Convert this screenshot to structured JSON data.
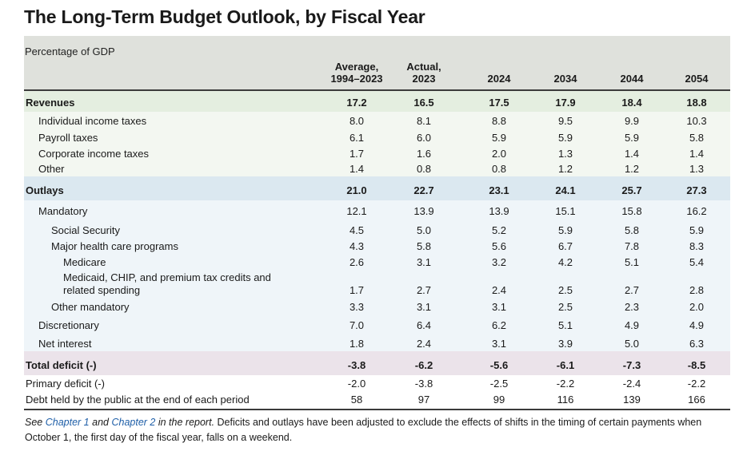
{
  "title": "The Long-Term Budget Outlook, by Fiscal Year",
  "subtitle": "Percentage of GDP",
  "columns": [
    {
      "line1": "Average,",
      "line2": "1994–2023"
    },
    {
      "line1": "Actual,",
      "line2": "2023"
    },
    {
      "line1": "",
      "line2": "2024"
    },
    {
      "line1": "",
      "line2": "2034"
    },
    {
      "line1": "",
      "line2": "2044"
    },
    {
      "line1": "",
      "line2": "2054"
    }
  ],
  "rows": [
    {
      "label": "Revenues",
      "values": [
        "17.2",
        "16.5",
        "17.5",
        "17.9",
        "18.4",
        "18.8"
      ]
    },
    {
      "label": "Individual income taxes",
      "values": [
        "8.0",
        "8.1",
        "8.8",
        "9.5",
        "9.9",
        "10.3"
      ]
    },
    {
      "label": "Payroll taxes",
      "values": [
        "6.1",
        "6.0",
        "5.9",
        "5.9",
        "5.9",
        "5.8"
      ]
    },
    {
      "label": "Corporate income taxes",
      "values": [
        "1.7",
        "1.6",
        "2.0",
        "1.3",
        "1.4",
        "1.4"
      ]
    },
    {
      "label": "Other",
      "values": [
        "1.4",
        "0.8",
        "0.8",
        "1.2",
        "1.2",
        "1.3"
      ]
    },
    {
      "label": "Outlays",
      "values": [
        "21.0",
        "22.7",
        "23.1",
        "24.1",
        "25.7",
        "27.3"
      ]
    },
    {
      "label": "Mandatory",
      "values": [
        "12.1",
        "13.9",
        "13.9",
        "15.1",
        "15.8",
        "16.2"
      ]
    },
    {
      "label": "Social Security",
      "values": [
        "4.5",
        "5.0",
        "5.2",
        "5.9",
        "5.8",
        "5.9"
      ]
    },
    {
      "label": "Major health care programs",
      "values": [
        "4.3",
        "5.8",
        "5.6",
        "6.7",
        "7.8",
        "8.3"
      ]
    },
    {
      "label": "Medicare",
      "values": [
        "2.6",
        "3.1",
        "3.2",
        "4.2",
        "5.1",
        "5.4"
      ]
    },
    {
      "label": "Medicaid, CHIP, and premium tax credits and",
      "label2": "related spending",
      "values": [
        "1.7",
        "2.7",
        "2.4",
        "2.5",
        "2.7",
        "2.8"
      ]
    },
    {
      "label": "Other mandatory",
      "values": [
        "3.3",
        "3.1",
        "3.1",
        "2.5",
        "2.3",
        "2.0"
      ]
    },
    {
      "label": "Discretionary",
      "values": [
        "7.0",
        "6.4",
        "6.2",
        "5.1",
        "4.9",
        "4.9"
      ]
    },
    {
      "label": "Net interest",
      "values": [
        "1.8",
        "2.4",
        "3.1",
        "3.9",
        "5.0",
        "6.3"
      ]
    },
    {
      "label": "Total deficit (-)",
      "values": [
        "-3.8",
        "-6.2",
        "-5.6",
        "-6.1",
        "-7.3",
        "-8.5"
      ]
    },
    {
      "label": "Primary deficit (-)",
      "values": [
        "-2.0",
        "-3.8",
        "-2.5",
        "-2.2",
        "-2.4",
        "-2.2"
      ]
    },
    {
      "label": "Debt held by the public at the end of each period",
      "values": [
        "58",
        "97",
        "99",
        "116",
        "139",
        "166"
      ]
    }
  ],
  "footnote": {
    "see": "See",
    "ch1": "Chapter 1",
    "and": "and",
    "ch2": "Chapter 2",
    "in_report": "in the report.",
    "text": "Deficits and outlays have been adjusted to exclude the effects of shifts in the timing of certain payments when October 1, the first day of the fiscal year, falls on a weekend."
  },
  "colors": {
    "header_bg": "#dfe1dc",
    "revenues_band": "#e4eee0",
    "revenues_detail_band": "#f3f7f1",
    "outlays_band": "#dbe8f0",
    "outlays_detail_band": "#eff5f9",
    "deficit_band": "#ebe3ea",
    "link": "#1f5fa8"
  }
}
